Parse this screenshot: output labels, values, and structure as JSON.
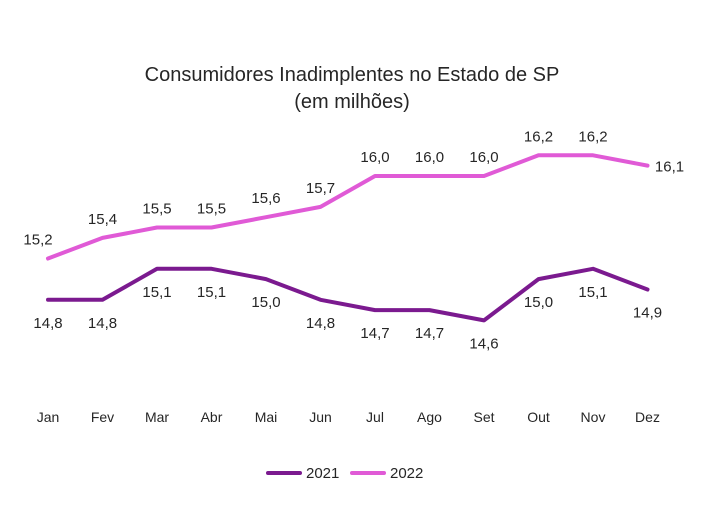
{
  "chart_data": {
    "type": "line",
    "title": "Consumidores Inadimplentes no Estado de SP",
    "subtitle": "(em milhões)",
    "xlabel": "",
    "ylabel": "",
    "categories": [
      "Jan",
      "Fev",
      "Mar",
      "Abr",
      "Mai",
      "Jun",
      "Jul",
      "Ago",
      "Set",
      "Out",
      "Nov",
      "Dez"
    ],
    "series": [
      {
        "name": "2021",
        "color": "#7b1a8f",
        "values": [
          14.8,
          14.8,
          15.1,
          15.1,
          15.0,
          14.8,
          14.7,
          14.7,
          14.6,
          15.0,
          15.1,
          14.9
        ],
        "labels": [
          "14,8",
          "14,8",
          "15,1",
          "15,1",
          "15,0",
          "14,8",
          "14,7",
          "14,7",
          "14,6",
          "15,0",
          "15,1",
          "14,9"
        ]
      },
      {
        "name": "2022",
        "color": "#e05ad6",
        "values": [
          15.2,
          15.4,
          15.5,
          15.5,
          15.6,
          15.7,
          16.0,
          16.0,
          16.0,
          16.2,
          16.2,
          16.1
        ],
        "labels": [
          "15,2",
          "15,4",
          "15,5",
          "15,5",
          "15,6",
          "15,7",
          "16,0",
          "16,0",
          "16,0",
          "16,2",
          "16,2",
          "16,1"
        ]
      }
    ],
    "ylim": [
      14.1,
      16.3
    ],
    "grid": false,
    "legend_position": "bottom"
  }
}
